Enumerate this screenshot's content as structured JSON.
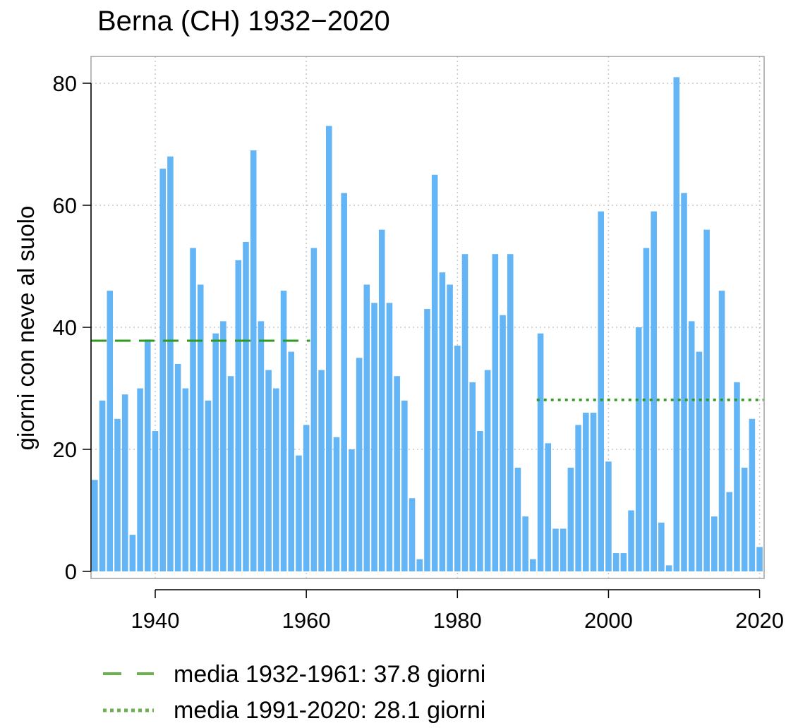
{
  "chart_data": {
    "type": "bar",
    "title": "Berna (CH) 1932−2020",
    "xlabel": "",
    "ylabel": "giorni con neve al suolo",
    "x_start": 1932,
    "x_end": 2020,
    "xlim": [
      1931.5,
      2020.6
    ],
    "ylim": [
      0,
      85
    ],
    "x_ticks": [
      1940,
      1960,
      1980,
      2000,
      2020
    ],
    "y_ticks": [
      0,
      20,
      40,
      60,
      80
    ],
    "x_tick_labels": [
      "1940",
      "1960",
      "1980",
      "2000",
      "2020"
    ],
    "y_tick_labels": [
      "0",
      "20",
      "40",
      "60",
      "80"
    ],
    "grid": true,
    "bar_color": "#63b5f6",
    "values": [
      15,
      28,
      46,
      25,
      29,
      6,
      30,
      38,
      23,
      66,
      68,
      34,
      30,
      53,
      47,
      28,
      39,
      41,
      32,
      51,
      54,
      69,
      41,
      33,
      30,
      46,
      36,
      19,
      24,
      53,
      33,
      73,
      22,
      62,
      20,
      35,
      47,
      44,
      56,
      44,
      32,
      28,
      12,
      2,
      43,
      65,
      49,
      47,
      37,
      52,
      31,
      23,
      33,
      52,
      42,
      52,
      17,
      9,
      2,
      39,
      21,
      7,
      7,
      17,
      24,
      26,
      26,
      59,
      18,
      3,
      3,
      10,
      40,
      53,
      59,
      8,
      1,
      81,
      62,
      41,
      36,
      56,
      9,
      46,
      13,
      31,
      17,
      25,
      4
    ],
    "reference_lines": [
      {
        "label": "media 1932-1961: 37.8 giorni",
        "value": 37.8,
        "from": 1932,
        "to": 1960,
        "style": "dashed",
        "color": "#2e9a1e"
      },
      {
        "label": "media 1991-2020: 28.1 giorni",
        "value": 28.1,
        "from": 1991,
        "to": 2020,
        "style": "dotted",
        "color": "#2e9a1e"
      }
    ],
    "legend": {
      "placement": "below",
      "entries": [
        {
          "label": "media 1932-1961: 37.8 giorni",
          "style": "dashed",
          "color": "#6ab04c"
        },
        {
          "label": "media 1991-2020: 28.1 giorni",
          "style": "dotted",
          "color": "#6ab04c"
        }
      ]
    }
  }
}
